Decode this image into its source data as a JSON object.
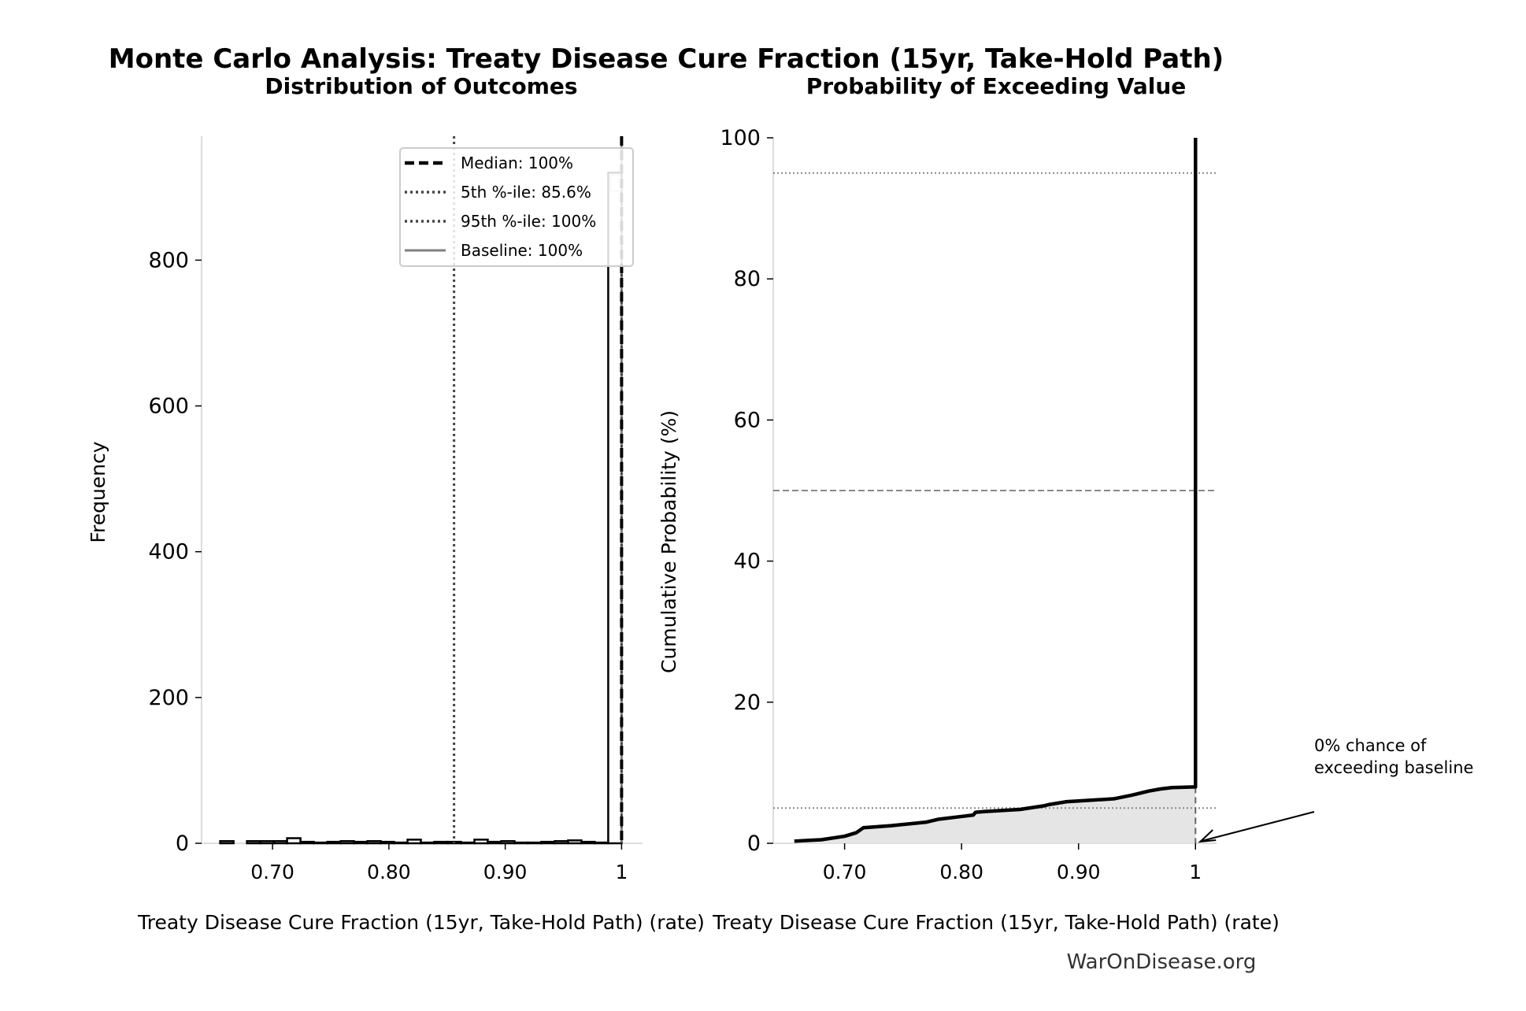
{
  "title": "Monte Carlo Analysis: Treaty Disease Cure Fraction (15yr, Take-Hold Path)",
  "footer": "WarOnDisease.org",
  "chart_data": [
    {
      "type": "bar",
      "subtitle": "Distribution of Outcomes",
      "xlabel": "Treaty Disease Cure Fraction (15yr, Take-Hold Path) (rate)",
      "ylabel": "Frequency",
      "xlim": [
        0.639,
        1.018
      ],
      "ylim": [
        0,
        970
      ],
      "xticks": [
        0.7,
        0.8,
        0.9,
        1.0
      ],
      "xtick_labels": [
        "0.70",
        "0.80",
        "0.90",
        "1"
      ],
      "yticks": [
        0,
        200,
        400,
        600,
        800
      ],
      "ytick_labels": [
        "0",
        "200",
        "400",
        "600",
        "800"
      ],
      "bin_edges": [
        0.655,
        0.6665,
        0.678,
        0.6895,
        0.701,
        0.7125,
        0.724,
        0.7355,
        0.747,
        0.7585,
        0.77,
        0.7815,
        0.793,
        0.8045,
        0.816,
        0.8275,
        0.839,
        0.8505,
        0.862,
        0.8735,
        0.885,
        0.8965,
        0.908,
        0.9195,
        0.931,
        0.9425,
        0.954,
        0.9655,
        0.977,
        0.9885,
        1.0
      ],
      "counts": [
        3,
        0,
        3,
        3,
        3,
        7,
        2,
        1,
        2,
        3,
        2,
        3,
        2,
        1,
        5,
        1,
        2,
        2,
        1,
        5,
        2,
        3,
        1,
        1,
        2,
        3,
        4,
        2,
        1,
        920
      ],
      "vlines": [
        {
          "label": "Median: 100%",
          "x": 1.0,
          "style": "dashed",
          "color": "#000000"
        },
        {
          "label": "5th %-ile: 85.6%",
          "x": 0.856,
          "style": "dotted",
          "color": "#444444"
        },
        {
          "label": "95th %-ile: 100%",
          "x": 1.0,
          "style": "dotted",
          "color": "#444444"
        },
        {
          "label": "Baseline: 100%",
          "x": 1.0,
          "style": "solid",
          "color": "#808080"
        }
      ],
      "legend_position": "top-right",
      "grid": false
    },
    {
      "type": "line",
      "subtitle": "Probability of Exceeding Value",
      "xlabel": "Treaty Disease Cure Fraction (15yr, Take-Hold Path) (rate)",
      "ylabel": "Cumulative Probability (%)",
      "xlim": [
        0.639,
        1.018
      ],
      "ylim": [
        0,
        100
      ],
      "xticks": [
        0.7,
        0.8,
        0.9,
        1.0
      ],
      "xtick_labels": [
        "0.70",
        "0.80",
        "0.90",
        "1"
      ],
      "yticks": [
        0,
        20,
        40,
        60,
        80,
        100
      ],
      "ytick_labels": [
        "0",
        "20",
        "40",
        "60",
        "80",
        "100"
      ],
      "x": [
        0.657,
        0.68,
        0.7,
        0.71,
        0.716,
        0.74,
        0.77,
        0.78,
        0.8,
        0.81,
        0.812,
        0.82,
        0.85,
        0.87,
        0.875,
        0.89,
        0.9,
        0.93,
        0.945,
        0.95,
        0.96,
        0.97,
        0.98,
        1.0,
        1.0
      ],
      "y": [
        0.3,
        0.5,
        1.0,
        1.5,
        2.2,
        2.5,
        3.0,
        3.4,
        3.8,
        4.0,
        4.4,
        4.5,
        4.8,
        5.3,
        5.5,
        5.9,
        6.0,
        6.3,
        6.8,
        7.0,
        7.4,
        7.7,
        7.9,
        8.0,
        100
      ],
      "hlines": [
        {
          "y": 95,
          "style": "dotted"
        },
        {
          "y": 50,
          "style": "dashed"
        },
        {
          "y": 5,
          "style": "dotted"
        }
      ],
      "baseline_x": 1.0,
      "annotation": {
        "text": [
          "0% chance of",
          "exceeding baseline"
        ],
        "x": 1.0,
        "y": 0
      },
      "fill_color": "#e5e5e5",
      "grid": false
    }
  ]
}
